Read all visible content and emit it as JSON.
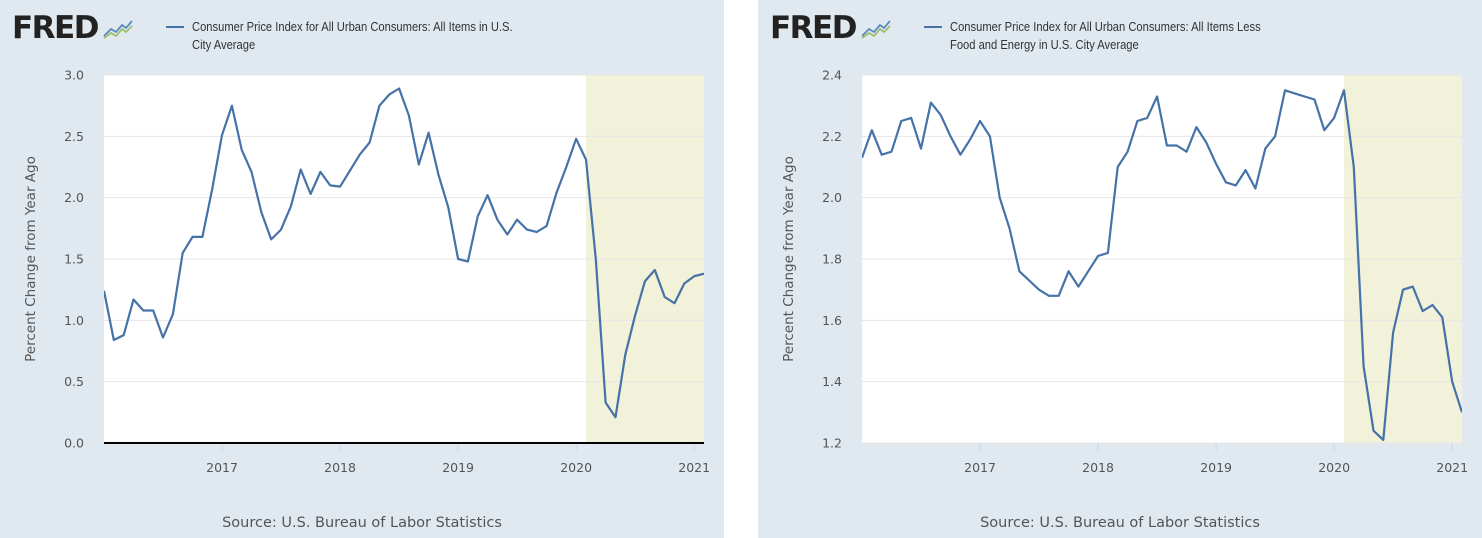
{
  "brand": {
    "logo_text": "FRED",
    "logo_graph_icon": "fred-graph-icon",
    "accent": "#4572a7",
    "recession_fill": "#f2f1da",
    "panel_bg": "#e1e9f0"
  },
  "chart_data": [
    {
      "type": "line",
      "title": "Consumer Price Index for All Urban Consumers: All Items in U.S. City Average",
      "title_lines": [
        "Consumer Price Index for All Urban Consumers: All Items in U.S.",
        "City Average"
      ],
      "ylabel": "Percent Change from Year Ago",
      "xlabel": "",
      "source": "Source: U.S. Bureau of Labor Statistics",
      "ylim": [
        0,
        3.0
      ],
      "yticks": [
        "0.0",
        "0.5",
        "1.0",
        "1.5",
        "2.0",
        "2.5",
        "3.0"
      ],
      "xlim": [
        "2016-01",
        "2021-02"
      ],
      "xticks": [
        "2017",
        "2018",
        "2019",
        "2020",
        "2021"
      ],
      "grid": true,
      "legend": "top",
      "shaded_region": {
        "from": "2020-02",
        "to": "2021-02"
      },
      "series": [
        {
          "color": "#4572a7",
          "x": [
            "2016-01",
            "2016-02",
            "2016-03",
            "2016-04",
            "2016-05",
            "2016-06",
            "2016-07",
            "2016-08",
            "2016-09",
            "2016-10",
            "2016-11",
            "2016-12",
            "2017-01",
            "2017-02",
            "2017-03",
            "2017-04",
            "2017-05",
            "2017-06",
            "2017-07",
            "2017-08",
            "2017-09",
            "2017-10",
            "2017-11",
            "2017-12",
            "2018-01",
            "2018-02",
            "2018-03",
            "2018-04",
            "2018-05",
            "2018-06",
            "2018-07",
            "2018-08",
            "2018-09",
            "2018-10",
            "2018-11",
            "2018-12",
            "2019-01",
            "2019-02",
            "2019-03",
            "2019-04",
            "2019-05",
            "2019-06",
            "2019-07",
            "2019-08",
            "2019-09",
            "2019-10",
            "2019-11",
            "2019-12",
            "2020-01",
            "2020-02",
            "2020-03",
            "2020-04",
            "2020-05",
            "2020-06",
            "2020-07",
            "2020-08",
            "2020-09",
            "2020-10",
            "2020-11",
            "2020-12",
            "2021-01",
            "2021-02"
          ],
          "values": [
            1.24,
            0.84,
            0.88,
            1.17,
            1.08,
            1.08,
            0.86,
            1.05,
            1.55,
            1.68,
            1.68,
            2.07,
            2.51,
            2.75,
            2.39,
            2.21,
            1.88,
            1.66,
            1.74,
            1.93,
            2.23,
            2.03,
            2.21,
            2.1,
            2.09,
            2.22,
            2.35,
            2.45,
            2.75,
            2.84,
            2.89,
            2.67,
            2.27,
            2.53,
            2.19,
            1.92,
            1.5,
            1.48,
            1.85,
            2.02,
            1.82,
            1.7,
            1.82,
            1.74,
            1.72,
            1.77,
            2.04,
            2.25,
            2.48,
            2.31,
            1.5,
            0.33,
            0.21,
            0.72,
            1.04,
            1.32,
            1.41,
            1.19,
            1.14,
            1.3,
            1.36,
            1.38
          ]
        }
      ]
    },
    {
      "type": "line",
      "title": "Consumer Price Index for All Urban Consumers: All Items Less Food and Energy in U.S. City Average",
      "title_lines": [
        "Consumer Price Index for All Urban Consumers: All Items Less",
        "Food and Energy in U.S. City Average"
      ],
      "ylabel": "Percent Change from Year Ago",
      "xlabel": "",
      "source": "Source: U.S. Bureau of Labor Statistics",
      "ylim": [
        1.2,
        2.4
      ],
      "yticks": [
        "1.2",
        "1.4",
        "1.6",
        "1.8",
        "2.0",
        "2.2",
        "2.4"
      ],
      "xlim": [
        "2016-01",
        "2021-02"
      ],
      "xticks": [
        "2017",
        "2018",
        "2019",
        "2020",
        "2021"
      ],
      "grid": true,
      "legend": "top",
      "shaded_region": {
        "from": "2020-02",
        "to": "2021-02"
      },
      "series": [
        {
          "color": "#4572a7",
          "x": [
            "2016-01",
            "2016-02",
            "2016-03",
            "2016-04",
            "2016-05",
            "2016-06",
            "2016-07",
            "2016-08",
            "2016-09",
            "2016-10",
            "2016-11",
            "2016-12",
            "2017-01",
            "2017-02",
            "2017-03",
            "2017-04",
            "2017-05",
            "2017-06",
            "2017-07",
            "2017-08",
            "2017-09",
            "2017-10",
            "2017-11",
            "2017-12",
            "2018-01",
            "2018-02",
            "2018-03",
            "2018-04",
            "2018-05",
            "2018-06",
            "2018-07",
            "2018-08",
            "2018-09",
            "2018-10",
            "2018-11",
            "2018-12",
            "2019-01",
            "2019-02",
            "2019-03",
            "2019-04",
            "2019-05",
            "2019-06",
            "2019-07",
            "2019-08",
            "2019-09",
            "2019-10",
            "2019-11",
            "2019-12",
            "2020-01",
            "2020-02",
            "2020-03",
            "2020-04",
            "2020-05",
            "2020-06",
            "2020-07",
            "2020-08",
            "2020-09",
            "2020-10",
            "2020-11",
            "2020-12",
            "2021-01",
            "2021-02"
          ],
          "values": [
            2.13,
            2.22,
            2.14,
            2.15,
            2.25,
            2.26,
            2.16,
            2.31,
            2.27,
            2.2,
            2.14,
            2.19,
            2.25,
            2.2,
            2.0,
            1.9,
            1.76,
            1.73,
            1.7,
            1.68,
            1.68,
            1.76,
            1.71,
            1.76,
            1.81,
            1.82,
            2.1,
            2.15,
            2.25,
            2.26,
            2.33,
            2.17,
            2.17,
            2.15,
            2.23,
            2.18,
            2.11,
            2.05,
            2.04,
            2.09,
            2.03,
            2.16,
            2.2,
            2.35,
            2.34,
            2.33,
            2.32,
            2.22,
            2.26,
            2.35,
            2.1,
            1.45,
            1.24,
            1.21,
            1.56,
            1.7,
            1.71,
            1.63,
            1.65,
            1.61,
            1.4,
            1.3
          ]
        }
      ]
    }
  ]
}
